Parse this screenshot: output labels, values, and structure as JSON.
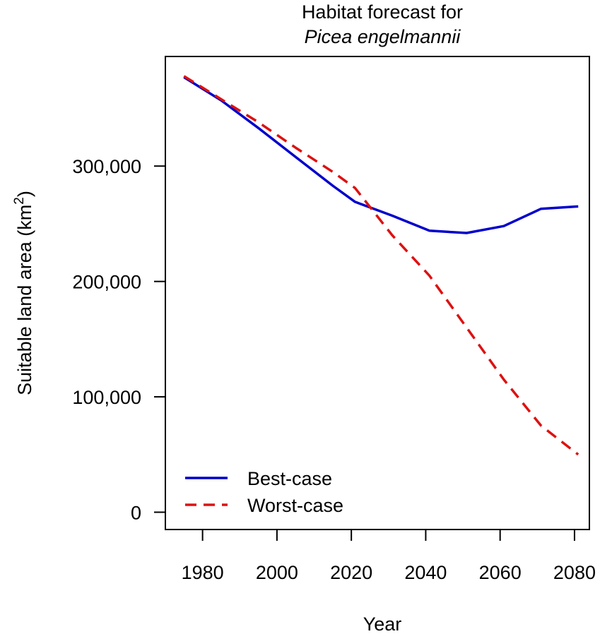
{
  "chart_data": {
    "type": "line",
    "title": "Habitat forecast for",
    "subtitle": "Picea engelmannii",
    "xlabel": "Year",
    "ylabel": "Suitable land area (km",
    "ylabel_sup": "2",
    "ylabel_close": ")",
    "xlim": [
      1970,
      2084
    ],
    "ylim": [
      -15000,
      395000
    ],
    "x_ticks": [
      1980,
      2000,
      2020,
      2040,
      2060,
      2080
    ],
    "x_tick_labels": [
      "1980",
      "2000",
      "2020",
      "2040",
      "2060",
      "2080"
    ],
    "y_ticks": [
      0,
      100000,
      200000,
      300000
    ],
    "y_tick_labels": [
      "0",
      "100,000",
      "200,000",
      "300,000"
    ],
    "grid": false,
    "legend_position": "bottom-left",
    "series": [
      {
        "name": "Best-case",
        "color": "#0000cc",
        "style": "solid",
        "x": [
          1975,
          1985,
          1995,
          2005,
          2015,
          2021,
          2031,
          2041,
          2051,
          2061,
          2071,
          2081
        ],
        "values": [
          377000,
          357000,
          333000,
          308000,
          283000,
          269000,
          257000,
          244000,
          242000,
          248000,
          263000,
          265000
        ]
      },
      {
        "name": "Worst-case",
        "color": "#dd1111",
        "style": "dashed",
        "x": [
          1975,
          1985,
          1995,
          2005,
          2015,
          2021,
          2031,
          2041,
          2051,
          2061,
          2071,
          2081
        ],
        "values": [
          378000,
          358000,
          338000,
          316000,
          295000,
          281000,
          240000,
          205000,
          160000,
          115000,
          75000,
          50000
        ]
      }
    ]
  }
}
